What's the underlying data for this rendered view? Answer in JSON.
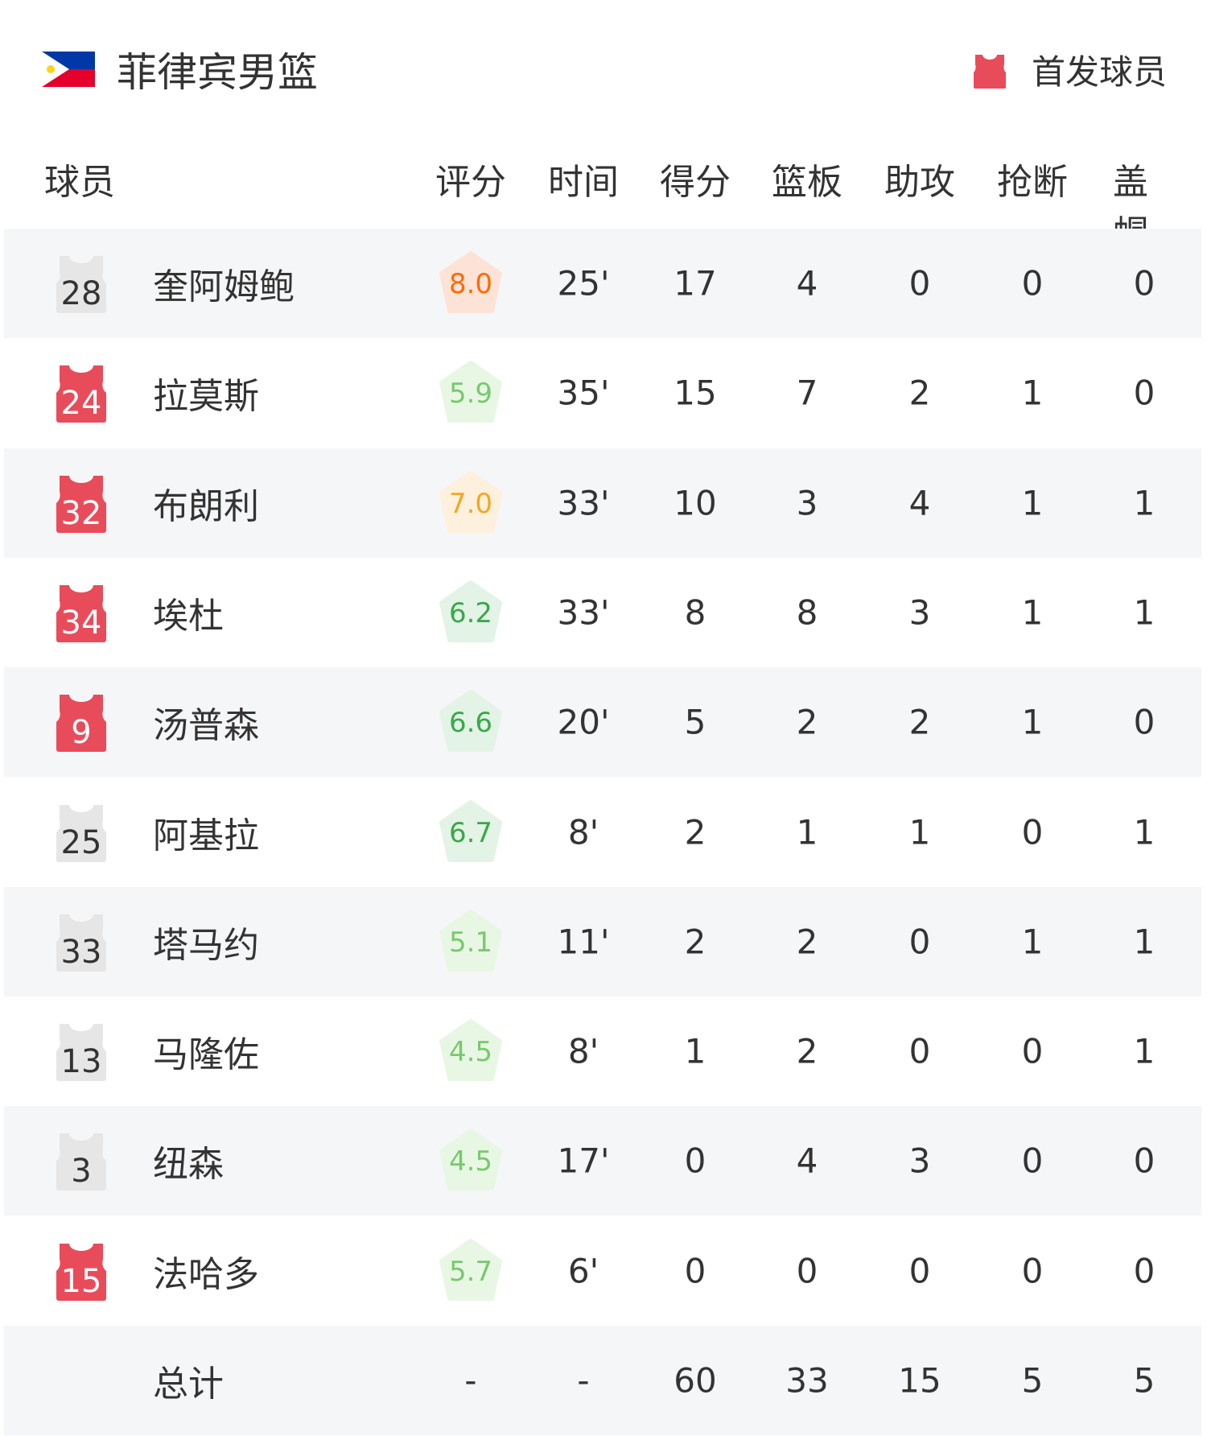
{
  "header": {
    "team": "菲律宾男篮",
    "legend_label": "首发球员",
    "flag_icon": "philippines-flag"
  },
  "columns": [
    "球员",
    "评分",
    "时间",
    "得分",
    "篮板",
    "助攻",
    "抢断",
    "盖帽"
  ],
  "colors": {
    "starter": "#e84c5a",
    "bench": "#e6e6e6",
    "row_alt": "#f5f6f8"
  },
  "players": [
    {
      "number": "28",
      "name": "奎阿姆鲍",
      "starter": false,
      "rating": "8.0",
      "time": "25'",
      "pts": "17",
      "reb": "4",
      "ast": "0",
      "stl": "0",
      "blk": "0"
    },
    {
      "number": "24",
      "name": "拉莫斯",
      "starter": true,
      "rating": "5.9",
      "time": "35'",
      "pts": "15",
      "reb": "7",
      "ast": "2",
      "stl": "1",
      "blk": "0"
    },
    {
      "number": "32",
      "name": "布朗利",
      "starter": true,
      "rating": "7.0",
      "time": "33'",
      "pts": "10",
      "reb": "3",
      "ast": "4",
      "stl": "1",
      "blk": "1"
    },
    {
      "number": "34",
      "name": "埃杜",
      "starter": true,
      "rating": "6.2",
      "time": "33'",
      "pts": "8",
      "reb": "8",
      "ast": "3",
      "stl": "1",
      "blk": "1"
    },
    {
      "number": "9",
      "name": "汤普森",
      "starter": true,
      "rating": "6.6",
      "time": "20'",
      "pts": "5",
      "reb": "2",
      "ast": "2",
      "stl": "1",
      "blk": "0"
    },
    {
      "number": "25",
      "name": "阿基拉",
      "starter": false,
      "rating": "6.7",
      "time": "8'",
      "pts": "2",
      "reb": "1",
      "ast": "1",
      "stl": "0",
      "blk": "1"
    },
    {
      "number": "33",
      "name": "塔马约",
      "starter": false,
      "rating": "5.1",
      "time": "11'",
      "pts": "2",
      "reb": "2",
      "ast": "0",
      "stl": "1",
      "blk": "1"
    },
    {
      "number": "13",
      "name": "马隆佐",
      "starter": false,
      "rating": "4.5",
      "time": "8'",
      "pts": "1",
      "reb": "2",
      "ast": "0",
      "stl": "0",
      "blk": "1"
    },
    {
      "number": "3",
      "name": "纽森",
      "starter": false,
      "rating": "4.5",
      "time": "17'",
      "pts": "0",
      "reb": "4",
      "ast": "3",
      "stl": "0",
      "blk": "0"
    },
    {
      "number": "15",
      "name": "法哈多",
      "starter": true,
      "rating": "5.7",
      "time": "6'",
      "pts": "0",
      "reb": "0",
      "ast": "0",
      "stl": "0",
      "blk": "0"
    }
  ],
  "total": {
    "label": "总计",
    "rating": "-",
    "time": "-",
    "pts": "60",
    "reb": "33",
    "ast": "15",
    "stl": "5",
    "blk": "5"
  }
}
